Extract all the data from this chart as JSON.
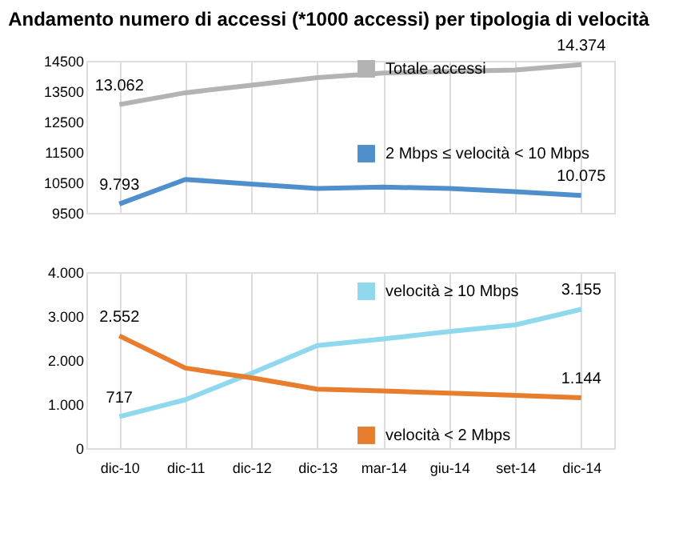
{
  "chart_data": [
    {
      "type": "line",
      "title": "Andamento numero di accessi (*1000 accessi) per tipologia di velocità",
      "categories": [
        null,
        null,
        null,
        null,
        null,
        null,
        null,
        null
      ],
      "ylim": [
        9500,
        14500
      ],
      "yticks": [
        9500,
        10500,
        11500,
        12500,
        13500,
        14500
      ],
      "grid": "x",
      "legend": "right",
      "series": [
        {
          "name": "Totale accessi",
          "color": "#b3b3b3",
          "values": [
            13062,
            13450,
            13700,
            13950,
            14100,
            14150,
            14200,
            14374
          ],
          "value_labels": [
            "13.062",
            null,
            null,
            null,
            null,
            null,
            null,
            "14.374"
          ]
        },
        {
          "name": "2 Mbps ≤ velocità < 10 Mbps",
          "color": "#4f8fcc",
          "values": [
            9793,
            10600,
            10450,
            10300,
            10350,
            10300,
            10200,
            10075
          ],
          "value_labels": [
            "9.793",
            null,
            null,
            null,
            null,
            null,
            null,
            "10.075"
          ]
        }
      ]
    },
    {
      "type": "line",
      "categories": [
        "dic-10",
        "dic-11",
        "dic-12",
        "dic-13",
        "mar-14",
        "giu-14",
        "set-14",
        "dic-14"
      ],
      "ylim": [
        0,
        4000
      ],
      "yticks": [
        0,
        {
          "value": 1000,
          "label": "1.000"
        },
        {
          "value": 2000,
          "label": "2.000"
        },
        {
          "value": 3000,
          "label": "3.000"
        },
        {
          "value": 4000,
          "label": "4.000"
        }
      ],
      "grid": "x",
      "legend": "right",
      "series": [
        {
          "name": "velocità ≥ 10 Mbps",
          "color": "#8fd8ee",
          "values": [
            717,
            1100,
            1700,
            2330,
            2480,
            2650,
            2800,
            3155
          ],
          "value_labels": [
            "717",
            null,
            null,
            null,
            null,
            null,
            null,
            "3.155"
          ]
        },
        {
          "name": "velocità < 2 Mbps",
          "color": "#e87d2e",
          "values": [
            2552,
            1820,
            1600,
            1340,
            1300,
            1250,
            1200,
            1144
          ],
          "value_labels": [
            "2.552",
            null,
            null,
            null,
            null,
            null,
            null,
            "1.144"
          ]
        }
      ]
    }
  ]
}
